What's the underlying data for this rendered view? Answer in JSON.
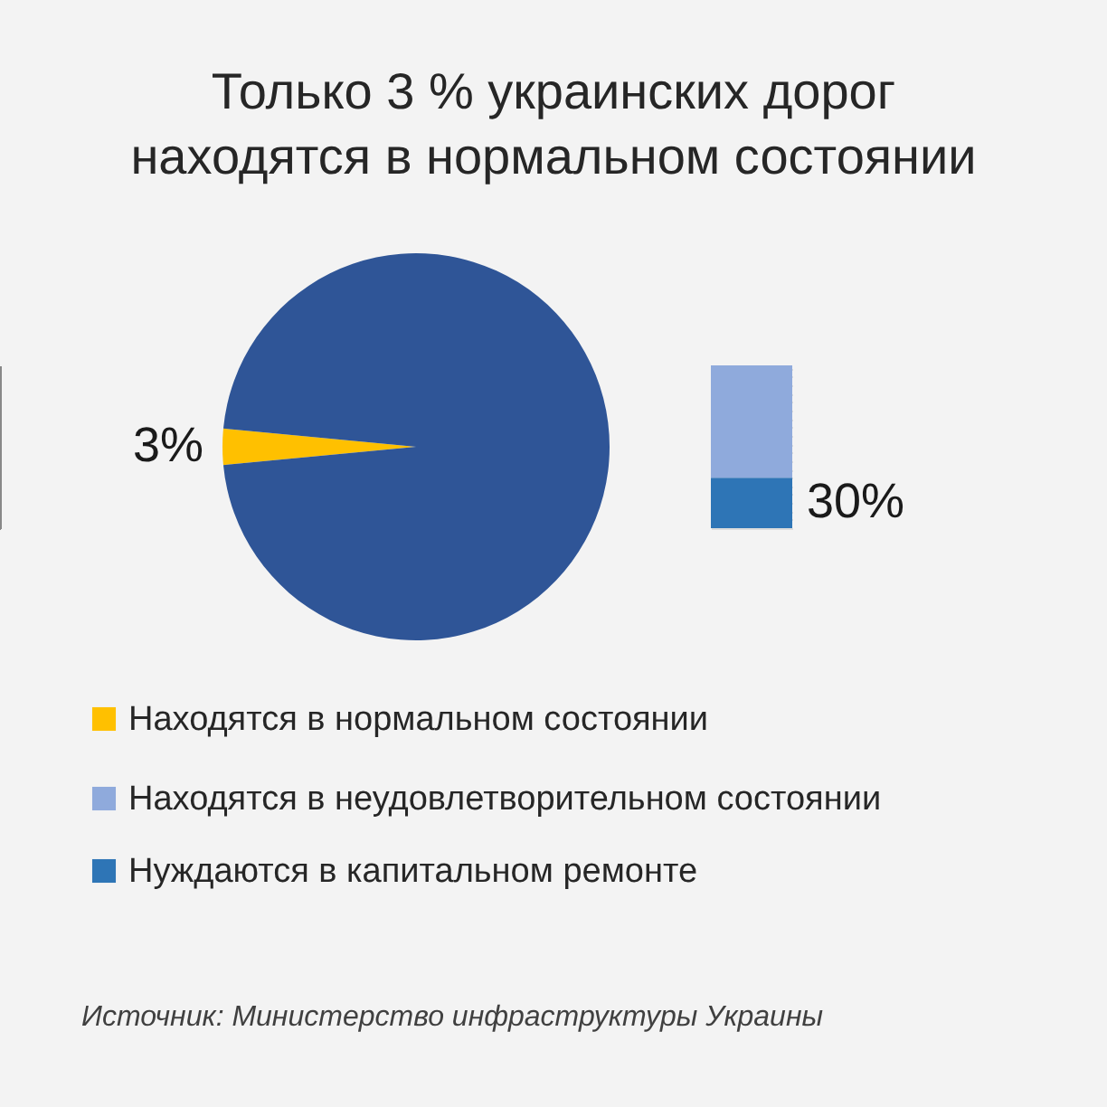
{
  "chart_data": [
    {
      "type": "pie",
      "title": [
        "Только 3 % украинских дорог",
        "находятся в нормальном состоянии"
      ],
      "categories": [
        "Находятся в нормальном состоянии",
        null
      ],
      "values": [
        3,
        97
      ],
      "colors": [
        "#ffc000",
        "#2f5597"
      ],
      "value_labels": [
        "3%",
        null
      ],
      "legend": "bottom",
      "annotations": [
        "Источник: Министерство инфраструктуры Украины"
      ]
    },
    {
      "type": "bar",
      "stacked": true,
      "categories": [
        null
      ],
      "legend": "bottom",
      "series": [
        {
          "name": "Нуждаются в капитальном ремонте",
          "color": "#2e75b6",
          "values": [
            30
          ],
          "value_labels": [
            "30%"
          ]
        },
        {
          "name": "Находятся в неудовлетворительном состоянии",
          "color": "#8faadc",
          "values": [
            67
          ],
          "value_labels": [
            null
          ]
        }
      ]
    }
  ]
}
